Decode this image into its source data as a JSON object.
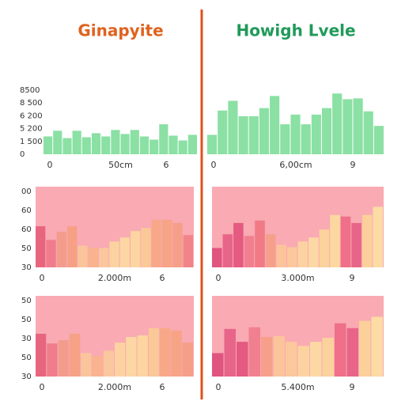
{
  "chart_data": [
    {
      "type": "bar",
      "title": "Ginapyite",
      "title_color": "#e0621f",
      "color": "#8be0a4",
      "ylim": [
        0,
        8500
      ],
      "y_labels": [
        "8500",
        "8 500",
        "6 200",
        "5 200",
        "1 500",
        "0"
      ],
      "x_labels": [
        "0",
        "50cm",
        "6"
      ],
      "values": [
        2200,
        2900,
        2000,
        2900,
        2100,
        2600,
        2200,
        3000,
        2500,
        3000,
        2200,
        1800,
        3700,
        2300,
        1700,
        2400
      ]
    },
    {
      "type": "bar",
      "title": "Howigh Lvele",
      "title_color": "#1f9a5a",
      "color": "#8be0a4",
      "ylim": [
        0,
        8500
      ],
      "x_labels": [
        "0",
        "6,00cm",
        "9"
      ],
      "values": [
        2400,
        5400,
        6600,
        4700,
        4700,
        5700,
        7200,
        3700,
        4900,
        3700,
        4900,
        5700,
        7500,
        6800,
        6900,
        5300,
        3500
      ]
    },
    {
      "type": "bar",
      "background": "#f9aab3",
      "ylim": [
        0,
        100
      ],
      "y_labels": [
        "00",
        "60",
        "60",
        "50",
        "30"
      ],
      "x_labels": [
        "0",
        "2.000m",
        "6"
      ],
      "values": [
        51,
        34,
        44,
        51,
        27,
        24,
        24,
        32,
        37,
        45,
        49,
        59,
        59,
        55,
        40
      ],
      "colors": [
        "#e8657f",
        "#ef7d8c",
        "#f49c8c",
        "#f6a186",
        "#fbc59c",
        "#f9b48f",
        "#fbc79e",
        "#fcd3a0",
        "#fcd7a3",
        "#fcd5a0",
        "#fbc898",
        "#f8a888",
        "#f7a385",
        "#f59e88",
        "#f0848a"
      ]
    },
    {
      "type": "bar",
      "background": "#f9aab3",
      "ylim": [
        0,
        100
      ],
      "x_labels": [
        "0",
        "3.000m",
        "9"
      ],
      "values": [
        24,
        41,
        55,
        39,
        58,
        41,
        28,
        25,
        32,
        37,
        47,
        65,
        63,
        55,
        65,
        75
      ],
      "colors": [
        "#e0557f",
        "#e8658a",
        "#e45a80",
        "#f08090",
        "#f07a86",
        "#f6a08c",
        "#fbc49a",
        "#fbc89c",
        "#fcd3a0",
        "#fcd9a4",
        "#fcd29c",
        "#fcd8a0",
        "#ef7088",
        "#e8658a",
        "#fcd09a",
        "#fcdca4"
      ]
    },
    {
      "type": "bar",
      "background": "#f9aab3",
      "ylim": [
        0,
        100
      ],
      "y_labels": [
        "50",
        "50",
        "30",
        "50",
        "30"
      ],
      "x_labels": [
        "0",
        "2.000m",
        "6"
      ],
      "values": [
        53,
        41,
        45,
        53,
        29,
        25,
        32,
        42,
        49,
        51,
        60,
        60,
        57,
        42
      ],
      "colors": [
        "#e8657f",
        "#ef7d8c",
        "#f49c8c",
        "#f6a186",
        "#fbc59c",
        "#f9b48f",
        "#fbc79e",
        "#fcd3a0",
        "#fcd7a3",
        "#fcd5a0",
        "#fbc898",
        "#f8a888",
        "#f7a385",
        "#f59e88"
      ]
    },
    {
      "type": "bar",
      "background": "#f9aab3",
      "ylim": [
        0,
        100
      ],
      "x_labels": [
        "0",
        "5.400m",
        "9"
      ],
      "values": [
        29,
        59,
        43,
        61,
        49,
        50,
        43,
        38,
        43,
        48,
        66,
        60,
        69,
        74
      ],
      "colors": [
        "#e0557f",
        "#e8658a",
        "#e45a80",
        "#f08090",
        "#f6a08c",
        "#fbc49a",
        "#fbc89c",
        "#fcd3a0",
        "#fcd9a4",
        "#fcd29c",
        "#ef7088",
        "#e8658a",
        "#fcd09a",
        "#fcdca4"
      ]
    }
  ]
}
